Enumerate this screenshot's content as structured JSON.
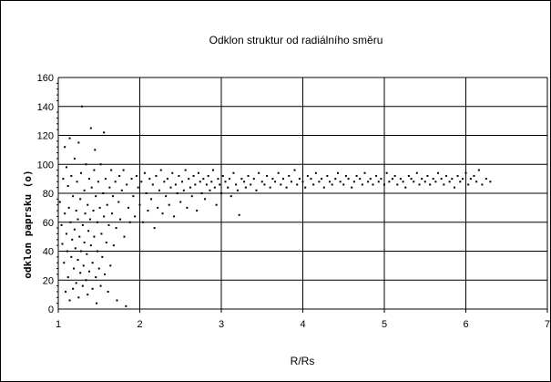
{
  "chart_data": {
    "type": "scatter",
    "title": "Odklon struktur od radiálního směru",
    "xlabel": "R/Rs",
    "ylabel": "odklon  paprsku (o)",
    "xlim": [
      1,
      7
    ],
    "ylim": [
      0,
      160
    ],
    "x_ticks": [
      "1",
      "2",
      "3",
      "4",
      "5",
      "6",
      "7"
    ],
    "y_ticks": [
      "0",
      "20",
      "40",
      "60",
      "80",
      "100",
      "120",
      "140",
      "160"
    ],
    "grid": true,
    "legend": "none",
    "colors": {
      "points": "#000000",
      "grid": "#000000",
      "background": "#ffffff"
    },
    "points": [
      [
        1.02,
        74
      ],
      [
        1.04,
        58
      ],
      [
        1.05,
        45
      ],
      [
        1.06,
        90
      ],
      [
        1.07,
        32
      ],
      [
        1.08,
        112
      ],
      [
        1.08,
        66
      ],
      [
        1.09,
        12
      ],
      [
        1.1,
        98
      ],
      [
        1.1,
        52
      ],
      [
        1.11,
        40
      ],
      [
        1.12,
        85
      ],
      [
        1.12,
        22
      ],
      [
        1.13,
        70
      ],
      [
        1.14,
        118
      ],
      [
        1.14,
        6
      ],
      [
        1.15,
        60
      ],
      [
        1.16,
        36
      ],
      [
        1.16,
        92
      ],
      [
        1.17,
        48
      ],
      [
        1.18,
        14
      ],
      [
        1.18,
        78
      ],
      [
        1.19,
        28
      ],
      [
        1.2,
        104
      ],
      [
        1.2,
        55
      ],
      [
        1.21,
        42
      ],
      [
        1.22,
        68
      ],
      [
        1.22,
        18
      ],
      [
        1.23,
        88
      ],
      [
        1.24,
        34
      ],
      [
        1.24,
        62
      ],
      [
        1.25,
        115
      ],
      [
        1.25,
        8
      ],
      [
        1.26,
        50
      ],
      [
        1.27,
        25
      ],
      [
        1.27,
        76
      ],
      [
        1.28,
        94
      ],
      [
        1.28,
        40
      ],
      [
        1.29,
        140
      ],
      [
        1.3,
        58
      ],
      [
        1.3,
        16
      ],
      [
        1.31,
        30
      ],
      [
        1.32,
        82
      ],
      [
        1.32,
        46
      ],
      [
        1.33,
        66
      ],
      [
        1.34,
        20
      ],
      [
        1.34,
        100
      ],
      [
        1.35,
        38
      ],
      [
        1.36,
        72
      ],
      [
        1.36,
        10
      ],
      [
        1.37,
        54
      ],
      [
        1.38,
        90
      ],
      [
        1.38,
        26
      ],
      [
        1.39,
        62
      ],
      [
        1.4,
        125
      ],
      [
        1.4,
        44
      ],
      [
        1.41,
        84
      ],
      [
        1.42,
        14
      ],
      [
        1.42,
        32
      ],
      [
        1.43,
        68
      ],
      [
        1.44,
        96
      ],
      [
        1.44,
        50
      ],
      [
        1.45,
        110
      ],
      [
        1.46,
        22
      ],
      [
        1.46,
        78
      ],
      [
        1.47,
        4
      ],
      [
        1.48,
        40
      ],
      [
        1.48,
        60
      ],
      [
        1.49,
        88
      ],
      [
        1.5,
        28
      ],
      [
        1.51,
        70
      ],
      [
        1.52,
        16
      ],
      [
        1.52,
        100
      ],
      [
        1.53,
        52
      ],
      [
        1.54,
        36
      ],
      [
        1.55,
        80
      ],
      [
        1.56,
        122
      ],
      [
        1.56,
        64
      ],
      [
        1.57,
        24
      ],
      [
        1.58,
        90
      ],
      [
        1.59,
        46
      ],
      [
        1.6,
        72
      ],
      [
        1.61,
        12
      ],
      [
        1.62,
        58
      ],
      [
        1.63,
        84
      ],
      [
        1.64,
        30
      ],
      [
        1.65,
        96
      ],
      [
        1.66,
        66
      ],
      [
        1.67,
        78
      ],
      [
        1.68,
        44
      ],
      [
        1.7,
        88
      ],
      [
        1.71,
        56
      ],
      [
        1.72,
        6
      ],
      [
        1.74,
        74
      ],
      [
        1.75,
        92
      ],
      [
        1.76,
        62
      ],
      [
        1.78,
        82
      ],
      [
        1.8,
        96
      ],
      [
        1.81,
        50
      ],
      [
        1.83,
        2
      ],
      [
        1.84,
        86
      ],
      [
        1.86,
        70
      ],
      [
        1.88,
        60
      ],
      [
        1.9,
        90
      ],
      [
        1.92,
        78
      ],
      [
        1.94,
        64
      ],
      [
        1.96,
        92
      ],
      [
        1.98,
        84
      ],
      [
        2.0,
        72
      ],
      [
        2.02,
        88
      ],
      [
        2.04,
        60
      ],
      [
        2.06,
        94
      ],
      [
        2.08,
        80
      ],
      [
        2.1,
        68
      ],
      [
        2.12,
        90
      ],
      [
        2.14,
        76
      ],
      [
        2.16,
        86
      ],
      [
        2.18,
        56
      ],
      [
        2.2,
        92
      ],
      [
        2.22,
        70
      ],
      [
        2.24,
        82
      ],
      [
        2.26,
        96
      ],
      [
        2.28,
        66
      ],
      [
        2.3,
        88
      ],
      [
        2.32,
        78
      ],
      [
        2.34,
        90
      ],
      [
        2.36,
        72
      ],
      [
        2.38,
        84
      ],
      [
        2.4,
        94
      ],
      [
        2.42,
        64
      ],
      [
        2.44,
        86
      ],
      [
        2.46,
        80
      ],
      [
        2.48,
        92
      ],
      [
        2.5,
        74
      ],
      [
        2.52,
        88
      ],
      [
        2.54,
        82
      ],
      [
        2.56,
        96
      ],
      [
        2.58,
        70
      ],
      [
        2.6,
        90
      ],
      [
        2.62,
        84
      ],
      [
        2.64,
        78
      ],
      [
        2.66,
        92
      ],
      [
        2.68,
        86
      ],
      [
        2.7,
        68
      ],
      [
        2.72,
        94
      ],
      [
        2.74,
        88
      ],
      [
        2.76,
        80
      ],
      [
        2.78,
        90
      ],
      [
        2.8,
        76
      ],
      [
        2.82,
        86
      ],
      [
        2.84,
        92
      ],
      [
        2.86,
        82
      ],
      [
        2.88,
        88
      ],
      [
        2.9,
        96
      ],
      [
        2.92,
        84
      ],
      [
        2.94,
        72
      ],
      [
        2.96,
        90
      ],
      [
        2.98,
        86
      ],
      [
        3.0,
        80
      ],
      [
        3.02,
        92
      ],
      [
        3.05,
        88
      ],
      [
        3.08,
        84
      ],
      [
        3.1,
        90
      ],
      [
        3.12,
        78
      ],
      [
        3.15,
        94
      ],
      [
        3.18,
        86
      ],
      [
        3.2,
        82
      ],
      [
        3.22,
        65
      ],
      [
        3.25,
        90
      ],
      [
        3.28,
        88
      ],
      [
        3.3,
        84
      ],
      [
        3.33,
        92
      ],
      [
        3.36,
        86
      ],
      [
        3.4,
        90
      ],
      [
        3.43,
        82
      ],
      [
        3.46,
        94
      ],
      [
        3.5,
        88
      ],
      [
        3.53,
        86
      ],
      [
        3.56,
        92
      ],
      [
        3.6,
        84
      ],
      [
        3.63,
        90
      ],
      [
        3.66,
        88
      ],
      [
        3.7,
        94
      ],
      [
        3.73,
        86
      ],
      [
        3.76,
        90
      ],
      [
        3.8,
        84
      ],
      [
        3.83,
        92
      ],
      [
        3.86,
        88
      ],
      [
        3.9,
        96
      ],
      [
        3.93,
        86
      ],
      [
        3.96,
        90
      ],
      [
        4.0,
        88
      ],
      [
        4.03,
        84
      ],
      [
        4.06,
        92
      ],
      [
        4.1,
        90
      ],
      [
        4.13,
        86
      ],
      [
        4.16,
        94
      ],
      [
        4.2,
        88
      ],
      [
        4.23,
        90
      ],
      [
        4.26,
        84
      ],
      [
        4.3,
        92
      ],
      [
        4.33,
        88
      ],
      [
        4.36,
        86
      ],
      [
        4.4,
        90
      ],
      [
        4.43,
        94
      ],
      [
        4.46,
        88
      ],
      [
        4.5,
        86
      ],
      [
        4.53,
        92
      ],
      [
        4.56,
        90
      ],
      [
        4.6,
        84
      ],
      [
        4.63,
        88
      ],
      [
        4.66,
        92
      ],
      [
        4.7,
        90
      ],
      [
        4.73,
        86
      ],
      [
        4.76,
        94
      ],
      [
        4.8,
        88
      ],
      [
        4.83,
        90
      ],
      [
        4.86,
        86
      ],
      [
        4.9,
        92
      ],
      [
        4.93,
        88
      ],
      [
        4.96,
        90
      ],
      [
        5.0,
        86
      ],
      [
        5.03,
        94
      ],
      [
        5.06,
        88
      ],
      [
        5.1,
        90
      ],
      [
        5.13,
        92
      ],
      [
        5.16,
        86
      ],
      [
        5.2,
        90
      ],
      [
        5.23,
        88
      ],
      [
        5.26,
        84
      ],
      [
        5.3,
        92
      ],
      [
        5.33,
        90
      ],
      [
        5.36,
        88
      ],
      [
        5.4,
        94
      ],
      [
        5.43,
        86
      ],
      [
        5.46,
        90
      ],
      [
        5.5,
        88
      ],
      [
        5.53,
        92
      ],
      [
        5.56,
        86
      ],
      [
        5.6,
        90
      ],
      [
        5.63,
        88
      ],
      [
        5.66,
        94
      ],
      [
        5.7,
        90
      ],
      [
        5.73,
        86
      ],
      [
        5.76,
        92
      ],
      [
        5.8,
        88
      ],
      [
        5.83,
        90
      ],
      [
        5.86,
        84
      ],
      [
        5.9,
        92
      ],
      [
        5.93,
        88
      ],
      [
        5.96,
        90
      ],
      [
        6.0,
        94
      ],
      [
        6.03,
        86
      ],
      [
        6.06,
        90
      ],
      [
        6.1,
        92
      ],
      [
        6.13,
        88
      ],
      [
        6.16,
        96
      ],
      [
        6.2,
        86
      ],
      [
        6.25,
        90
      ],
      [
        6.3,
        88
      ]
    ]
  }
}
